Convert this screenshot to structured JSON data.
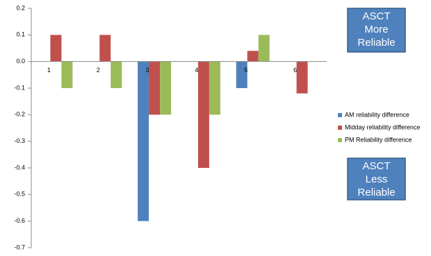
{
  "chart_data": {
    "type": "bar",
    "categories": [
      "1",
      "2",
      "3",
      "4",
      "5",
      "6"
    ],
    "series": [
      {
        "name": "AM reliability difference",
        "color": "#4f81bd",
        "values": [
          0,
          0,
          -0.6,
          0,
          -0.1,
          0
        ]
      },
      {
        "name": "Midday reliability difference",
        "color": "#c0504d",
        "values": [
          0.1,
          0.1,
          -0.2,
          -0.4,
          0.04,
          -0.12
        ]
      },
      {
        "name": "PM Reliability difference",
        "color": "#9bbb59",
        "values": [
          -0.1,
          -0.1,
          -0.2,
          -0.2,
          0.1,
          0
        ]
      }
    ],
    "ylim": [
      -0.7,
      0.2
    ],
    "yticks": [
      0.2,
      0.1,
      {
        "value": 0,
        "label": "0.0"
      },
      -0.1,
      -0.2,
      -0.3,
      -0.4,
      -0.5,
      -0.6,
      -0.7
    ],
    "legend": "right",
    "annotations": [
      {
        "lines": [
          "ASCT",
          "More",
          "Reliable"
        ]
      },
      {
        "lines": [
          "ASCT",
          "Less",
          "Reliable"
        ]
      }
    ]
  }
}
